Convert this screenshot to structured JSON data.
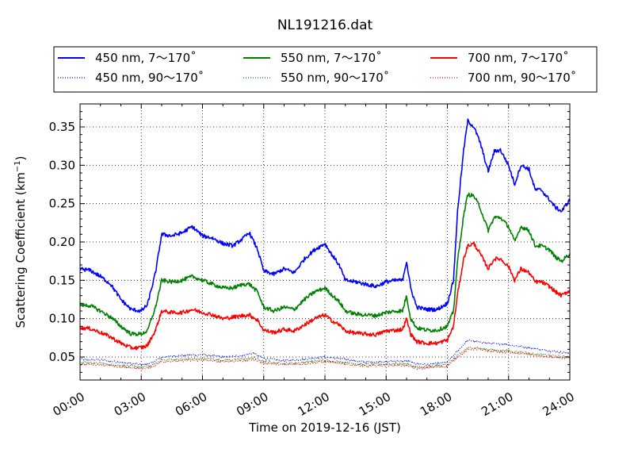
{
  "chart_data": {
    "type": "line",
    "title": "NL191216.dat",
    "xlabel": "Time on 2019-12-16 (JST)",
    "ylabel": "Scattering Coefficient (km",
    "ylabel_sup": "−1",
    "ylabel_close": ")",
    "xlim": [
      0,
      24
    ],
    "ylim": [
      0.02,
      0.38
    ],
    "x_ticks": [
      0,
      3,
      6,
      9,
      12,
      15,
      18,
      21,
      24
    ],
    "x_tick_labels": [
      "00:00",
      "03:00",
      "06:00",
      "09:00",
      "12:00",
      "15:00",
      "18:00",
      "21:00",
      "24:00"
    ],
    "y_ticks": [
      0.05,
      0.1,
      0.15,
      0.2,
      0.25,
      0.3,
      0.35
    ],
    "y_tick_labels": [
      "0.05",
      "0.10",
      "0.15",
      "0.20",
      "0.25",
      "0.30",
      "0.35"
    ],
    "grid": true,
    "legend_position": "top, above plot, 3 columns",
    "series": [
      {
        "name": "450 nm, 7～170˚",
        "color": "#0000ff",
        "style": "solid",
        "x": [
          0,
          0.5,
          1,
          1.5,
          2,
          2.5,
          3,
          3.3,
          3.7,
          4,
          4.5,
          5,
          5.5,
          6,
          6.5,
          7,
          7.5,
          8,
          8.3,
          8.7,
          9,
          9.5,
          10,
          10.5,
          11,
          11.5,
          12,
          12.3,
          12.7,
          13,
          13.5,
          14,
          14.5,
          15,
          15.5,
          15.8,
          16,
          16.2,
          16.5,
          17,
          17.5,
          18,
          18.3,
          18.5,
          18.8,
          19,
          19.3,
          19.6,
          20,
          20.3,
          20.6,
          21,
          21.3,
          21.6,
          22,
          22.3,
          22.6,
          23,
          23.3,
          23.6,
          24
        ],
        "y": [
          0.165,
          0.163,
          0.155,
          0.145,
          0.125,
          0.112,
          0.11,
          0.118,
          0.16,
          0.21,
          0.208,
          0.212,
          0.22,
          0.208,
          0.205,
          0.198,
          0.195,
          0.205,
          0.212,
          0.19,
          0.162,
          0.158,
          0.165,
          0.16,
          0.178,
          0.19,
          0.198,
          0.185,
          0.17,
          0.15,
          0.148,
          0.145,
          0.142,
          0.148,
          0.15,
          0.15,
          0.175,
          0.14,
          0.115,
          0.112,
          0.112,
          0.12,
          0.15,
          0.24,
          0.32,
          0.358,
          0.35,
          0.33,
          0.292,
          0.318,
          0.32,
          0.3,
          0.275,
          0.3,
          0.295,
          0.268,
          0.268,
          0.255,
          0.245,
          0.24,
          0.255
        ]
      },
      {
        "name": "550 nm, 7～170˚",
        "color": "#008000",
        "style": "solid",
        "x": [
          0,
          0.5,
          1,
          1.5,
          2,
          2.5,
          3,
          3.3,
          3.7,
          4,
          4.5,
          5,
          5.5,
          6,
          6.5,
          7,
          7.5,
          8,
          8.3,
          8.7,
          9,
          9.5,
          10,
          10.5,
          11,
          11.5,
          12,
          12.3,
          12.7,
          13,
          13.5,
          14,
          14.5,
          15,
          15.5,
          15.8,
          16,
          16.2,
          16.5,
          17,
          17.5,
          18,
          18.3,
          18.5,
          18.8,
          19,
          19.3,
          19.6,
          20,
          20.3,
          20.6,
          21,
          21.3,
          21.6,
          22,
          22.3,
          22.6,
          23,
          23.3,
          23.6,
          24
        ],
        "y": [
          0.118,
          0.117,
          0.11,
          0.102,
          0.09,
          0.08,
          0.08,
          0.084,
          0.115,
          0.15,
          0.148,
          0.15,
          0.155,
          0.15,
          0.145,
          0.14,
          0.14,
          0.145,
          0.145,
          0.135,
          0.115,
          0.11,
          0.115,
          0.112,
          0.125,
          0.135,
          0.14,
          0.132,
          0.122,
          0.11,
          0.106,
          0.105,
          0.104,
          0.108,
          0.11,
          0.11,
          0.13,
          0.1,
          0.088,
          0.085,
          0.085,
          0.09,
          0.11,
          0.175,
          0.235,
          0.262,
          0.26,
          0.245,
          0.215,
          0.232,
          0.232,
          0.22,
          0.2,
          0.22,
          0.215,
          0.195,
          0.195,
          0.19,
          0.18,
          0.175,
          0.185
        ]
      },
      {
        "name": "700 nm, 7～170˚",
        "color": "#ff0000",
        "style": "solid",
        "x": [
          0,
          0.5,
          1,
          1.5,
          2,
          2.5,
          3,
          3.3,
          3.7,
          4,
          4.5,
          5,
          5.5,
          6,
          6.5,
          7,
          7.5,
          8,
          8.3,
          8.7,
          9,
          9.5,
          10,
          10.5,
          11,
          11.5,
          12,
          12.3,
          12.7,
          13,
          13.5,
          14,
          14.5,
          15,
          15.5,
          15.8,
          16,
          16.2,
          16.5,
          17,
          17.5,
          18,
          18.3,
          18.5,
          18.8,
          19,
          19.3,
          19.6,
          20,
          20.3,
          20.6,
          21,
          21.3,
          21.6,
          22,
          22.3,
          22.6,
          23,
          23.3,
          23.6,
          24
        ],
        "y": [
          0.088,
          0.087,
          0.082,
          0.076,
          0.068,
          0.062,
          0.062,
          0.065,
          0.085,
          0.11,
          0.108,
          0.108,
          0.112,
          0.108,
          0.105,
          0.1,
          0.102,
          0.104,
          0.105,
          0.098,
          0.085,
          0.082,
          0.086,
          0.084,
          0.092,
          0.1,
          0.105,
          0.098,
          0.092,
          0.084,
          0.081,
          0.08,
          0.079,
          0.084,
          0.085,
          0.086,
          0.1,
          0.08,
          0.07,
          0.068,
          0.068,
          0.072,
          0.09,
          0.132,
          0.178,
          0.195,
          0.198,
          0.185,
          0.165,
          0.178,
          0.178,
          0.168,
          0.15,
          0.165,
          0.16,
          0.148,
          0.148,
          0.142,
          0.135,
          0.13,
          0.137
        ]
      },
      {
        "name": "450 nm, 90～170˚",
        "color": "#0000ff",
        "style": "dotted",
        "x": [
          0,
          1,
          2,
          3,
          3.5,
          4,
          5,
          6,
          7,
          8,
          8.5,
          9,
          10,
          11,
          12,
          13,
          14,
          15,
          16,
          16.5,
          17,
          18,
          18.5,
          19,
          19.5,
          20,
          21,
          22,
          23,
          24
        ],
        "y": [
          0.047,
          0.046,
          0.043,
          0.04,
          0.042,
          0.05,
          0.052,
          0.053,
          0.05,
          0.052,
          0.055,
          0.048,
          0.045,
          0.047,
          0.05,
          0.047,
          0.043,
          0.044,
          0.045,
          0.041,
          0.04,
          0.043,
          0.058,
          0.072,
          0.07,
          0.068,
          0.066,
          0.062,
          0.058,
          0.055
        ]
      },
      {
        "name": "550 nm, 90～170˚",
        "color": "#008000",
        "style": "dotted",
        "x": [
          0,
          1,
          2,
          3,
          3.5,
          4,
          5,
          6,
          7,
          8,
          8.5,
          9,
          10,
          11,
          12,
          13,
          14,
          15,
          16,
          16.5,
          17,
          18,
          18.5,
          19,
          19.5,
          20,
          21,
          22,
          23,
          24
        ],
        "y": [
          0.043,
          0.042,
          0.039,
          0.037,
          0.039,
          0.046,
          0.047,
          0.048,
          0.046,
          0.047,
          0.049,
          0.044,
          0.042,
          0.043,
          0.046,
          0.043,
          0.04,
          0.041,
          0.041,
          0.037,
          0.037,
          0.04,
          0.052,
          0.062,
          0.062,
          0.06,
          0.058,
          0.055,
          0.052,
          0.05
        ]
      },
      {
        "name": "700 nm, 90～170˚",
        "color": "#ff0000",
        "style": "dotted",
        "x": [
          0,
          1,
          2,
          3,
          3.5,
          4,
          5,
          6,
          7,
          8,
          8.5,
          9,
          10,
          11,
          12,
          13,
          14,
          15,
          16,
          16.5,
          17,
          18,
          18.5,
          19,
          19.5,
          20,
          21,
          22,
          23,
          24
        ],
        "y": [
          0.041,
          0.04,
          0.037,
          0.035,
          0.037,
          0.044,
          0.045,
          0.046,
          0.044,
          0.045,
          0.047,
          0.042,
          0.04,
          0.041,
          0.044,
          0.041,
          0.038,
          0.039,
          0.039,
          0.035,
          0.036,
          0.038,
          0.05,
          0.06,
          0.06,
          0.058,
          0.056,
          0.053,
          0.05,
          0.048
        ]
      }
    ]
  }
}
